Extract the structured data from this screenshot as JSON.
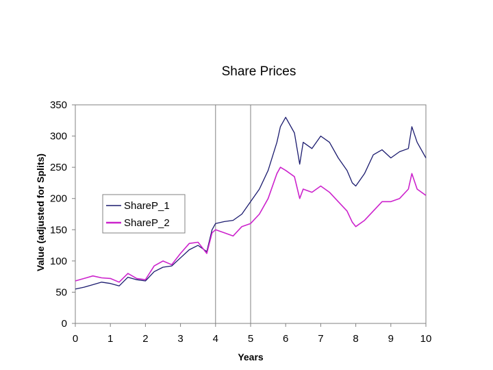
{
  "chart_data": {
    "type": "line",
    "title": "Share Prices",
    "xlabel": "Years",
    "ylabel": "Value (adjusted for Splits)",
    "xlim": [
      0,
      10
    ],
    "ylim": [
      0,
      350
    ],
    "x_ticks": [
      "0",
      "1",
      "2",
      "3",
      "4",
      "5",
      "6",
      "7",
      "8",
      "9",
      "10"
    ],
    "y_ticks": [
      "0",
      "50",
      "100",
      "150",
      "200",
      "250",
      "300",
      "350"
    ],
    "vertical_lines": [
      4,
      5
    ],
    "grid": false,
    "legend_position": "middle-left",
    "x": [
      0,
      0.25,
      0.5,
      0.75,
      1,
      1.25,
      1.5,
      1.75,
      2,
      2.25,
      2.5,
      2.75,
      3,
      3.25,
      3.5,
      3.75,
      3.9,
      4,
      4.25,
      4.5,
      4.75,
      5,
      5.25,
      5.5,
      5.75,
      5.85,
      6,
      6.25,
      6.4,
      6.5,
      6.75,
      7,
      7.25,
      7.5,
      7.75,
      7.9,
      8,
      8.25,
      8.5,
      8.75,
      9,
      9.25,
      9.5,
      9.6,
      9.75,
      10
    ],
    "series": [
      {
        "name": "ShareP_1",
        "color": "#1a1a6e",
        "values": [
          55,
          58,
          62,
          66,
          64,
          60,
          74,
          70,
          68,
          83,
          90,
          92,
          105,
          118,
          125,
          115,
          150,
          160,
          163,
          165,
          175,
          195,
          215,
          245,
          290,
          315,
          330,
          305,
          255,
          290,
          280,
          300,
          290,
          265,
          245,
          225,
          220,
          240,
          270,
          278,
          265,
          275,
          280,
          315,
          290,
          265
        ]
      },
      {
        "name": "ShareP_2",
        "color": "#cc22cc",
        "values": [
          68,
          72,
          76,
          73,
          72,
          66,
          80,
          72,
          70,
          92,
          100,
          94,
          112,
          128,
          130,
          112,
          145,
          150,
          145,
          140,
          155,
          160,
          175,
          200,
          240,
          250,
          245,
          235,
          200,
          215,
          210,
          220,
          210,
          195,
          180,
          162,
          155,
          165,
          180,
          195,
          195,
          200,
          215,
          240,
          215,
          205
        ]
      }
    ]
  }
}
